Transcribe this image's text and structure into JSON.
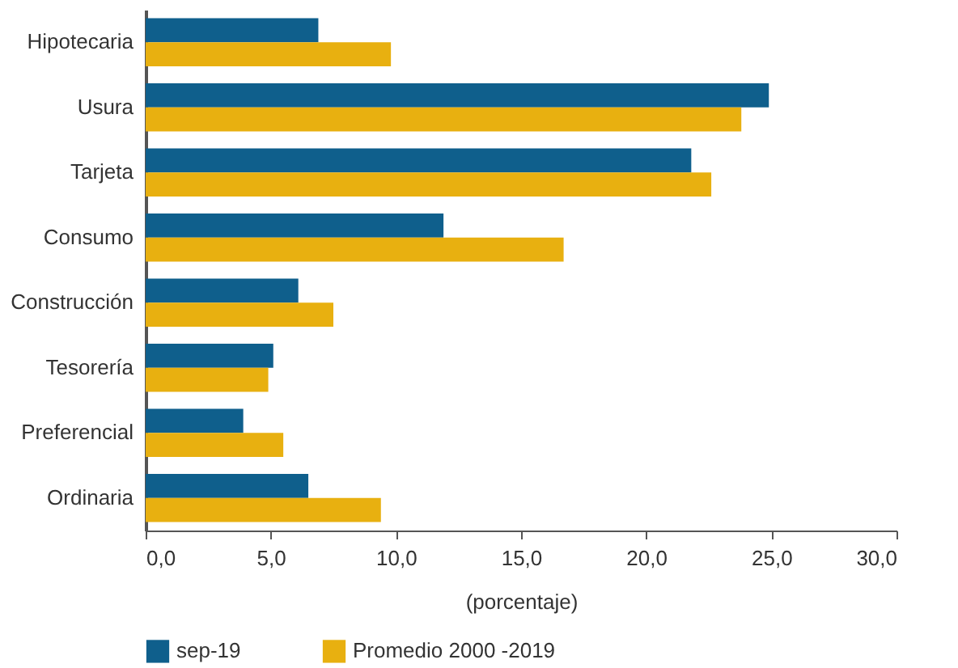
{
  "chart_data": {
    "type": "bar",
    "orientation": "horizontal",
    "xlabel": "(porcentaje)",
    "categories": [
      "Hipotecaria",
      "Usura",
      "Tarjeta",
      "Consumo",
      "Construcción",
      "Tesorería",
      "Preferencial",
      "Ordinaria"
    ],
    "series": [
      {
        "name": "sep-19",
        "color": "#0f5f8c",
        "values": [
          6.9,
          24.9,
          21.8,
          11.9,
          6.1,
          5.1,
          3.9,
          6.5
        ]
      },
      {
        "name": "Promedio 2000 -2019",
        "color": "#e8b010",
        "values": [
          9.8,
          23.8,
          22.6,
          16.7,
          7.5,
          4.9,
          5.5,
          9.4
        ]
      }
    ],
    "xlim": [
      0,
      30
    ],
    "xticks": [
      {
        "value": 0,
        "label": "0,0"
      },
      {
        "value": 5,
        "label": "5,0"
      },
      {
        "value": 10,
        "label": "10,0"
      },
      {
        "value": 15,
        "label": "15,0"
      },
      {
        "value": 20,
        "label": "20,0"
      },
      {
        "value": 25,
        "label": "25,0"
      },
      {
        "value": 30,
        "label": "30,0"
      }
    ],
    "grid": false,
    "legend": "bottom"
  }
}
